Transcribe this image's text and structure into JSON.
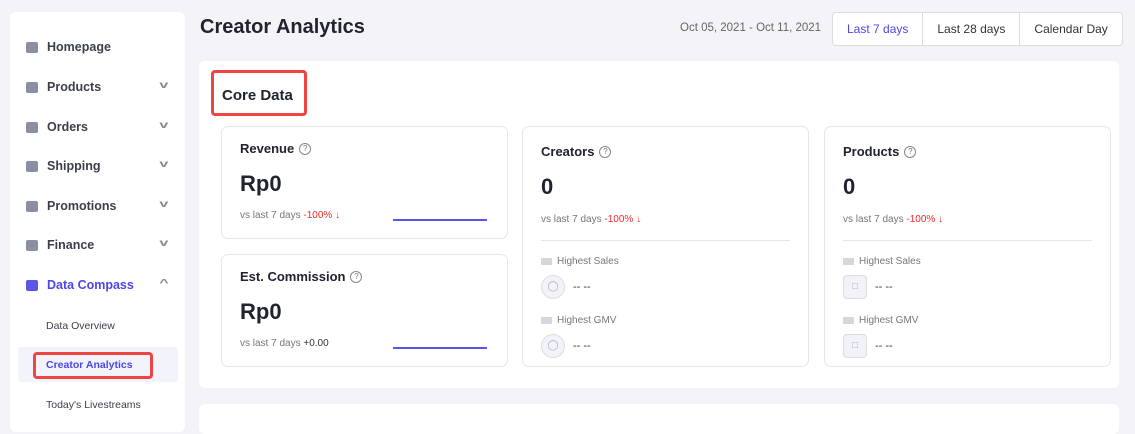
{
  "sidebar": {
    "items": [
      {
        "label": "Homepage",
        "icon": "home-icon"
      },
      {
        "label": "Products",
        "icon": "bag-icon"
      },
      {
        "label": "Orders",
        "icon": "orders-icon"
      },
      {
        "label": "Shipping",
        "icon": "truck-icon"
      },
      {
        "label": "Promotions",
        "icon": "megaphone-icon"
      },
      {
        "label": "Finance",
        "icon": "card-icon"
      },
      {
        "label": "Data Compass",
        "icon": "chart-icon"
      }
    ],
    "subitems": [
      "Data Overview",
      "Creator Analytics",
      "Today's Livestreams"
    ]
  },
  "header": {
    "title": "Creator Analytics",
    "date_range": "Oct 05, 2021 - Oct 11, 2021",
    "ranges": [
      "Last 7 days",
      "Last 28 days",
      "Calendar Day"
    ],
    "active_range": "Last 7 days"
  },
  "core": {
    "title": "Core Data",
    "revenue": {
      "label": "Revenue",
      "value": "Rp0",
      "vs": "vs last 7 days",
      "change": "-100%"
    },
    "commission": {
      "label": "Est. Commission",
      "value": "Rp0",
      "vs": "vs last 7 days",
      "change": "+0.00"
    },
    "creators": {
      "label": "Creators",
      "value": "0",
      "vs": "vs last 7 days",
      "change": "-100%",
      "highest_sales": "Highest Sales",
      "highest_sales_value": "-- --",
      "highest_gmv": "Highest GMV",
      "highest_gmv_value": "-- --"
    },
    "products": {
      "label": "Products",
      "value": "0",
      "vs": "vs last 7 days",
      "change": "-100%",
      "highest_sales": "Highest Sales",
      "highest_sales_value": "-- --",
      "highest_gmv": "Highest GMV",
      "highest_gmv_value": "-- --"
    }
  },
  "colors": {
    "accent": "#4f46e5",
    "negative": "#ef2a2a",
    "highlight_box": "#ef4444"
  }
}
